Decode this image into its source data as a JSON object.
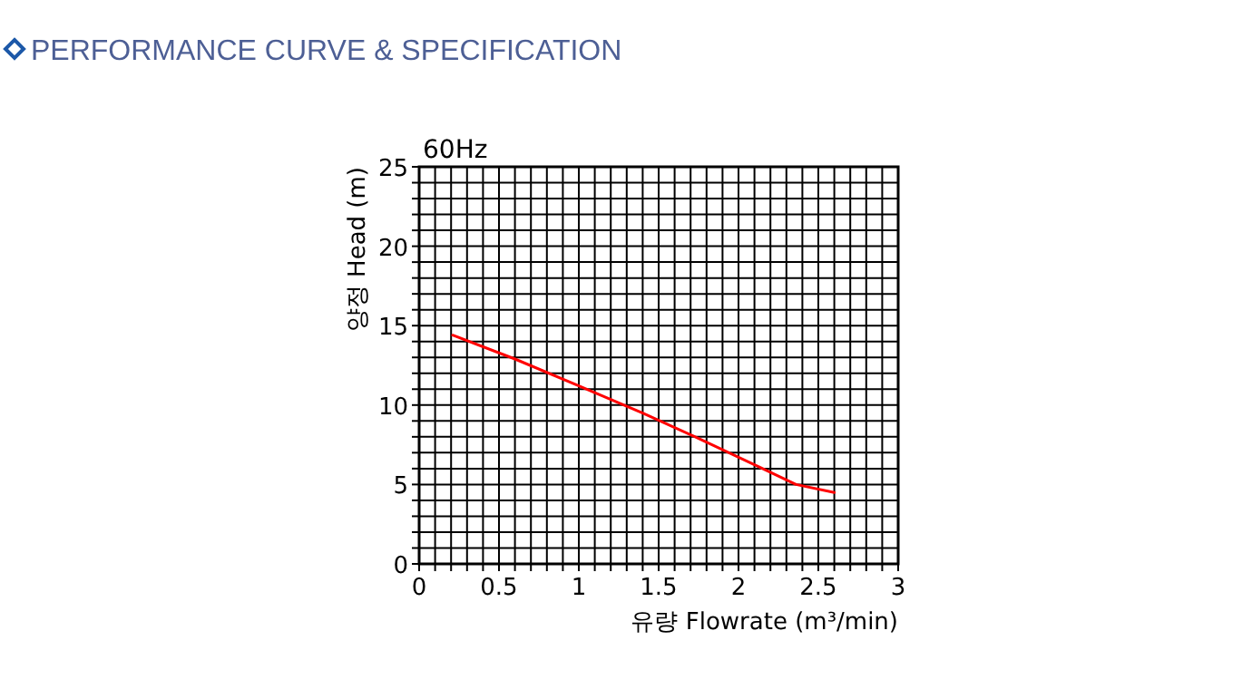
{
  "chart_data": {
    "type": "line",
    "title": "PERFORMANCE CURVE & SPECIFICATION",
    "xlabel": "유량 Flowrate (m³/min)",
    "ylabel": "양정 Head (m)",
    "annotations": [
      "60Hz"
    ],
    "x": [
      0.21,
      0.6,
      0.98,
      1.4,
      1.75,
      2.13,
      2.36,
      2.6
    ],
    "series": [
      {
        "color": "#ff0000",
        "values": [
          14.4,
          12.9,
          11.3,
          9.5,
          7.9,
          6.1,
          5.0,
          4.5
        ]
      }
    ],
    "xlim": [
      0,
      3
    ],
    "ylim": [
      0,
      25
    ],
    "xticks": [
      0,
      {
        "value": 0.1,
        "label": null
      },
      {
        "value": 0.2,
        "label": null
      },
      {
        "value": 0.3,
        "label": null
      },
      {
        "value": 0.4,
        "label": null
      },
      0.5,
      {
        "value": 0.6,
        "label": null
      },
      {
        "value": 0.7,
        "label": null
      },
      {
        "value": 0.8,
        "label": null
      },
      {
        "value": 0.9,
        "label": null
      },
      1,
      {
        "value": 1.1,
        "label": null
      },
      {
        "value": 1.2,
        "label": null
      },
      {
        "value": 1.3,
        "label": null
      },
      {
        "value": 1.4,
        "label": null
      },
      1.5,
      {
        "value": 1.6,
        "label": null
      },
      {
        "value": 1.7,
        "label": null
      },
      {
        "value": 1.8,
        "label": null
      },
      {
        "value": 1.9,
        "label": null
      },
      2,
      {
        "value": 2.1,
        "label": null
      },
      {
        "value": 2.2,
        "label": null
      },
      {
        "value": 2.3,
        "label": null
      },
      {
        "value": 2.4,
        "label": null
      },
      2.5,
      {
        "value": 2.6,
        "label": null
      },
      {
        "value": 2.7,
        "label": null
      },
      {
        "value": 2.8,
        "label": null
      },
      {
        "value": 2.9,
        "label": null
      },
      3
    ],
    "yticks": [
      0,
      {
        "value": 1,
        "label": null
      },
      {
        "value": 2,
        "label": null
      },
      {
        "value": 3,
        "label": null
      },
      {
        "value": 4,
        "label": null
      },
      5,
      {
        "value": 6,
        "label": null
      },
      {
        "value": 7,
        "label": null
      },
      {
        "value": 8,
        "label": null
      },
      {
        "value": 9,
        "label": null
      },
      10,
      {
        "value": 11,
        "label": null
      },
      {
        "value": 12,
        "label": null
      },
      {
        "value": 13,
        "label": null
      },
      {
        "value": 14,
        "label": null
      },
      15,
      {
        "value": 16,
        "label": null
      },
      {
        "value": 17,
        "label": null
      },
      {
        "value": 18,
        "label": null
      },
      {
        "value": 19,
        "label": null
      },
      20,
      {
        "value": 21,
        "label": null
      },
      {
        "value": 22,
        "label": null
      },
      {
        "value": 23,
        "label": null
      },
      {
        "value": 24,
        "label": null
      },
      25
    ],
    "grid": true,
    "marker": "none",
    "line_style": "solid"
  }
}
